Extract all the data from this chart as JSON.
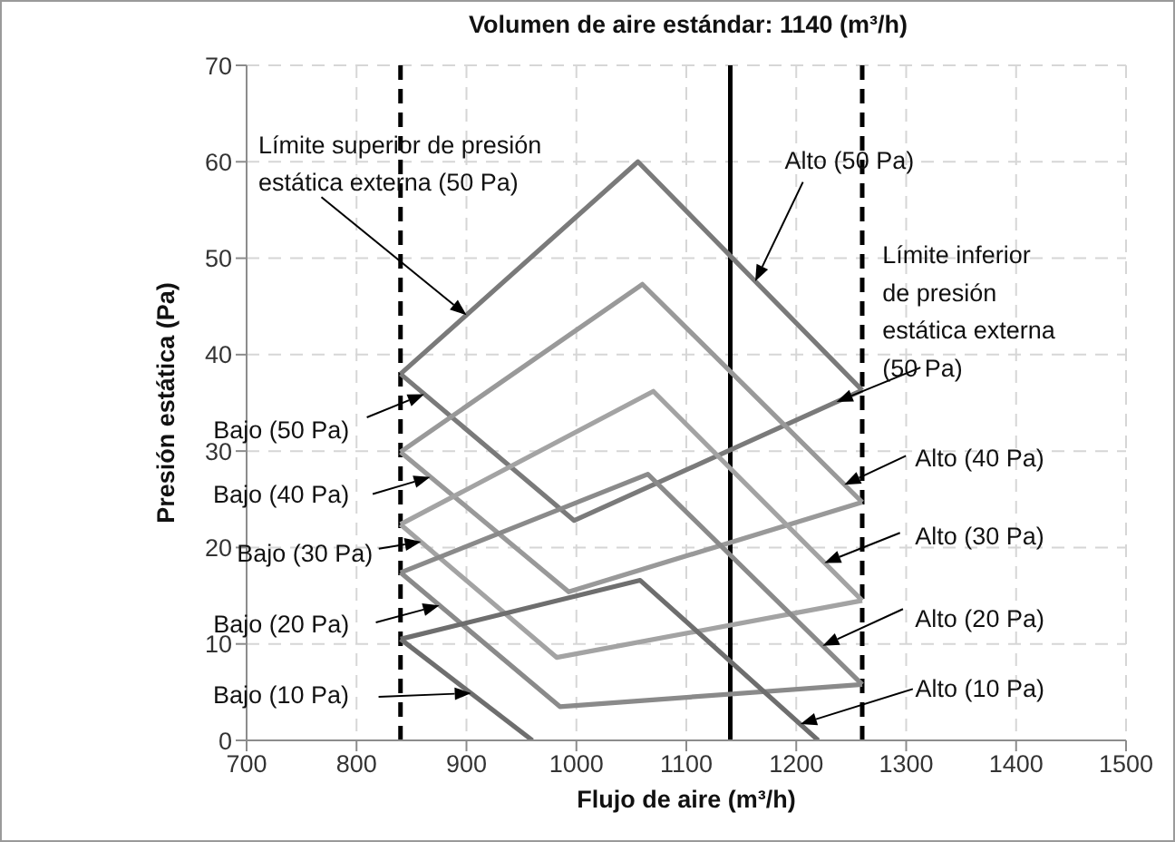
{
  "chart_data": {
    "type": "line",
    "title": "Volumen de aire estándar: 1140 (m³/h)",
    "xlabel": "Flujo de aire (m³/h)",
    "ylabel": "Presión estática (Pa)",
    "xlim": [
      700,
      1500
    ],
    "xticks": [
      700,
      800,
      900,
      1000,
      1100,
      1200,
      1300,
      1400,
      1500
    ],
    "ylim": [
      0,
      70
    ],
    "yticks": [
      0,
      10,
      20,
      30,
      40,
      50,
      60,
      70
    ],
    "grid": true,
    "series": [
      {
        "color": "#7a7a7a",
        "x": [
          840,
          1056,
          1260
        ],
        "values": [
          38,
          60,
          36.3
        ]
      },
      {
        "color": "#7a7a7a",
        "x": [
          840,
          998,
          1260
        ],
        "values": [
          38,
          22.8,
          36.3
        ]
      },
      {
        "color": "#999999",
        "x": [
          840,
          1060,
          1260
        ],
        "values": [
          29.9,
          47.3,
          24.7
        ]
      },
      {
        "color": "#999999",
        "x": [
          840,
          993,
          1260
        ],
        "values": [
          29.9,
          15.4,
          24.7
        ]
      },
      {
        "color": "#a3a3a3",
        "x": [
          840,
          1070,
          1260
        ],
        "values": [
          22.4,
          36.2,
          14.5
        ]
      },
      {
        "color": "#a3a3a3",
        "x": [
          840,
          982,
          1260
        ],
        "values": [
          22.4,
          8.6,
          14.5
        ]
      },
      {
        "color": "#8a8a8a",
        "x": [
          840,
          1065,
          1260
        ],
        "values": [
          17.4,
          27.6,
          5.8
        ]
      },
      {
        "color": "#8a8a8a",
        "x": [
          840,
          985,
          1260
        ],
        "values": [
          17.4,
          3.5,
          5.8
        ]
      },
      {
        "color": "#6e6e6e",
        "x": [
          840,
          1058,
          1220
        ],
        "values": [
          10.5,
          16.6,
          0
        ]
      },
      {
        "color": "#6e6e6e",
        "x": [
          840,
          960
        ],
        "values": [
          10.5,
          0
        ]
      }
    ],
    "ref_lines": [
      {
        "axis": "x",
        "value": 840,
        "line_style": "dashed",
        "color": "#000000"
      },
      {
        "axis": "x",
        "value": 1140,
        "line_style": "solid",
        "color": "#000000"
      },
      {
        "axis": "x",
        "value": 1260,
        "line_style": "dashed",
        "color": "#000000"
      }
    ],
    "annotations": [
      {
        "text": "Límite superior de presión estática externa (50 Pa)",
        "x": 900,
        "y": 44.1
      },
      {
        "text": "Alto (50 Pa)",
        "x": 1162.7,
        "y": 47.6
      },
      {
        "text": "Límite inferior de presión estática externa (50 Pa)",
        "x": 1236.6,
        "y": 35.1
      },
      {
        "text": "Bajo (50 Pa)",
        "x": 861.5,
        "y": 35.9
      },
      {
        "text": "Bajo (40 Pa)",
        "x": 867,
        "y": 27.3
      },
      {
        "text": "Bajo (30 Pa)",
        "x": 858.8,
        "y": 20.6
      },
      {
        "text": "Bajo (20 Pa)",
        "x": 875.3,
        "y": 14
      },
      {
        "text": "Bajo (10 Pa)",
        "x": 904.2,
        "y": 4.9
      },
      {
        "text": "Alto (40 Pa)",
        "x": 1243.7,
        "y": 26.5
      },
      {
        "text": "Alto (30 Pa)",
        "x": 1225.6,
        "y": 18.4
      },
      {
        "text": "Alto (20 Pa)",
        "x": 1224,
        "y": 9.8
      },
      {
        "text": "Alto (10 Pa)",
        "x": 1203.8,
        "y": 1.7
      }
    ]
  }
}
